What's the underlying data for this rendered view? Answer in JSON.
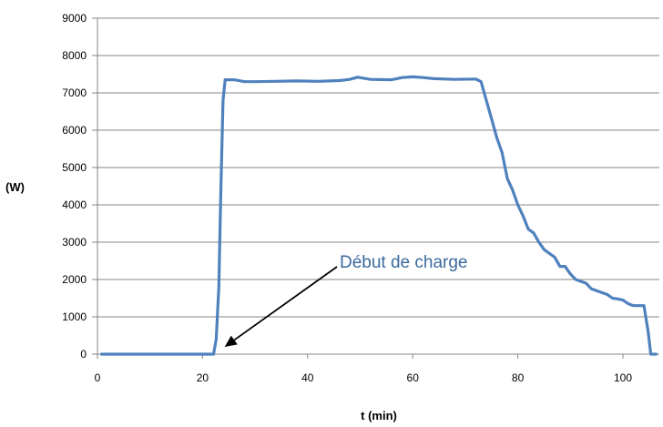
{
  "chart_data": {
    "type": "line",
    "title": "",
    "xlabel": "t (min)",
    "ylabel": "(W)",
    "xlim": [
      0,
      106
    ],
    "ylim": [
      0,
      9000
    ],
    "x_ticks": [
      0,
      20,
      40,
      60,
      80,
      100
    ],
    "y_ticks": [
      0,
      1000,
      2000,
      3000,
      4000,
      5000,
      6000,
      7000,
      8000,
      9000
    ],
    "grid": {
      "horizontal": true,
      "vertical": false
    },
    "legend": "none",
    "series": [
      {
        "color": "#4f81bd",
        "x": [
          0.8,
          10,
          20,
          22.1,
          22.6,
          23.1,
          23.5,
          23.9,
          24.3,
          26,
          28,
          30,
          34,
          38,
          42,
          46,
          48,
          49.5,
          52,
          56,
          58,
          60,
          62,
          64,
          68,
          72,
          73,
          74,
          75,
          76,
          77,
          78,
          79,
          80,
          81,
          82,
          83,
          84,
          85,
          86,
          87,
          88,
          89,
          90,
          91,
          92,
          93,
          94,
          95,
          96,
          97,
          98,
          99,
          100,
          101,
          102,
          103,
          104,
          104.8,
          105.3,
          105.8,
          106.3
        ],
        "y": [
          0,
          0,
          0,
          0,
          400,
          1800,
          4500,
          6800,
          7350,
          7350,
          7300,
          7300,
          7310,
          7320,
          7310,
          7330,
          7360,
          7420,
          7360,
          7350,
          7410,
          7430,
          7410,
          7380,
          7360,
          7370,
          7300,
          6800,
          6300,
          5800,
          5400,
          4700,
          4400,
          4000,
          3700,
          3350,
          3250,
          3000,
          2800,
          2700,
          2600,
          2350,
          2350,
          2150,
          2000,
          1950,
          1900,
          1750,
          1700,
          1650,
          1600,
          1500,
          1480,
          1450,
          1350,
          1300,
          1300,
          1300,
          600,
          0,
          0,
          0
        ]
      }
    ],
    "annotations": [
      {
        "text": "Début de charge",
        "points_to": {
          "x": 23,
          "y": 0
        }
      }
    ]
  }
}
